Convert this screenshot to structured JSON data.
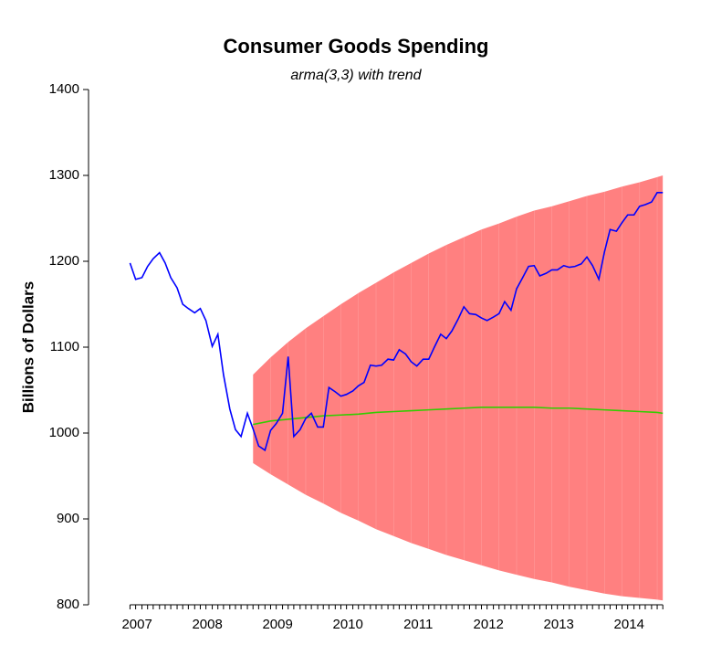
{
  "chart_data": {
    "type": "line",
    "title": "Consumer Goods Spending",
    "subtitle": "arma(3,3) with trend",
    "y_label": "Billions of Dollars",
    "xlim": [
      2006.81,
      2015.25
    ],
    "ylim": [
      800,
      1400
    ],
    "yticks": [
      800,
      900,
      1000,
      1100,
      1200,
      1300,
      1400
    ],
    "xticks": [
      {
        "value": 2007.5,
        "label": "2007"
      },
      {
        "value": 2008.5,
        "label": "2008"
      },
      {
        "value": 2009.5,
        "label": "2009"
      },
      {
        "value": 2010.5,
        "label": "2010"
      },
      {
        "value": 2011.5,
        "label": "2011"
      },
      {
        "value": 2012.5,
        "label": "2012"
      },
      {
        "value": 2013.5,
        "label": "2013"
      },
      {
        "value": 2014.5,
        "label": "2014"
      }
    ],
    "band": {
      "color": "#ff8080",
      "x": [
        2009.15,
        2009.4,
        2009.65,
        2009.9,
        2010.15,
        2010.4,
        2010.65,
        2010.9,
        2011.15,
        2011.4,
        2011.65,
        2011.9,
        2012.15,
        2012.4,
        2012.65,
        2012.9,
        2013.15,
        2013.4,
        2013.65,
        2013.9,
        2014.15,
        2014.4,
        2014.65,
        2014.9,
        2014.98
      ],
      "upper": [
        1068,
        1088,
        1106,
        1122,
        1136,
        1150,
        1163,
        1175,
        1187,
        1198,
        1209,
        1219,
        1228,
        1237,
        1244,
        1252,
        1259,
        1264,
        1270,
        1276,
        1281,
        1287,
        1292,
        1298,
        1300
      ],
      "lower": [
        965,
        952,
        940,
        928,
        918,
        907,
        898,
        888,
        880,
        872,
        865,
        858,
        852,
        846,
        840,
        835,
        830,
        826,
        821,
        817,
        813,
        810,
        808,
        806,
        805
      ]
    },
    "series": [
      {
        "color": "#0000ff",
        "x": [
          2007.4,
          2007.48,
          2007.57,
          2007.65,
          2007.73,
          2007.82,
          2007.9,
          2007.98,
          2008.07,
          2008.15,
          2008.23,
          2008.32,
          2008.4,
          2008.48,
          2008.57,
          2008.65,
          2008.73,
          2008.82,
          2008.9,
          2008.98,
          2009.07,
          2009.15,
          2009.23,
          2009.32,
          2009.4,
          2009.48,
          2009.57,
          2009.65,
          2009.73,
          2009.82,
          2009.9,
          2009.98,
          2010.07,
          2010.15,
          2010.23,
          2010.32,
          2010.4,
          2010.48,
          2010.57,
          2010.65,
          2010.73,
          2010.82,
          2010.9,
          2010.98,
          2011.07,
          2011.15,
          2011.23,
          2011.32,
          2011.4,
          2011.48,
          2011.57,
          2011.65,
          2011.73,
          2011.82,
          2011.9,
          2011.98,
          2012.07,
          2012.15,
          2012.23,
          2012.32,
          2012.4,
          2012.48,
          2012.57,
          2012.65,
          2012.73,
          2012.82,
          2012.9,
          2012.98,
          2013.07,
          2013.15,
          2013.23,
          2013.32,
          2013.4,
          2013.48,
          2013.57,
          2013.65,
          2013.73,
          2013.82,
          2013.9,
          2013.98,
          2014.07,
          2014.15,
          2014.23,
          2014.32,
          2014.4,
          2014.48,
          2014.57,
          2014.65,
          2014.73,
          2014.82,
          2014.9,
          2014.98
        ],
        "values": [
          1198,
          1179,
          1181,
          1194,
          1203,
          1210,
          1198,
          1181,
          1169,
          1150,
          1145,
          1140,
          1145,
          1131,
          1101,
          1115,
          1068,
          1028,
          1004,
          996,
          1023,
          1005,
          985,
          980,
          1003,
          1011,
          1023,
          1089,
          996,
          1004,
          1017,
          1023,
          1007,
          1007,
          1053,
          1048,
          1043,
          1045,
          1049,
          1055,
          1059,
          1079,
          1078,
          1079,
          1086,
          1085,
          1097,
          1092,
          1083,
          1078,
          1086,
          1086,
          1100,
          1115,
          1110,
          1119,
          1133,
          1147,
          1139,
          1138,
          1134,
          1131,
          1135,
          1139,
          1153,
          1143,
          1168,
          1180,
          1194,
          1195,
          1183,
          1186,
          1190,
          1190,
          1195,
          1193,
          1194,
          1197,
          1205,
          1195,
          1179,
          1211,
          1237,
          1235,
          1245,
          1254,
          1254,
          1264,
          1266,
          1269,
          1280,
          1280
        ]
      },
      {
        "color": "#33cc00",
        "x": [
          2009.15,
          2009.4,
          2009.65,
          2009.9,
          2010.15,
          2010.4,
          2010.65,
          2010.9,
          2011.15,
          2011.4,
          2011.65,
          2011.9,
          2012.15,
          2012.4,
          2012.65,
          2012.9,
          2013.15,
          2013.4,
          2013.65,
          2013.9,
          2014.15,
          2014.4,
          2014.65,
          2014.9,
          2014.98
        ],
        "values": [
          1010,
          1014,
          1016,
          1018,
          1020,
          1021,
          1022,
          1024,
          1025,
          1026,
          1027,
          1028,
          1029,
          1030,
          1030,
          1030,
          1030,
          1029,
          1029,
          1028,
          1027,
          1026,
          1025,
          1024,
          1023
        ]
      }
    ]
  }
}
